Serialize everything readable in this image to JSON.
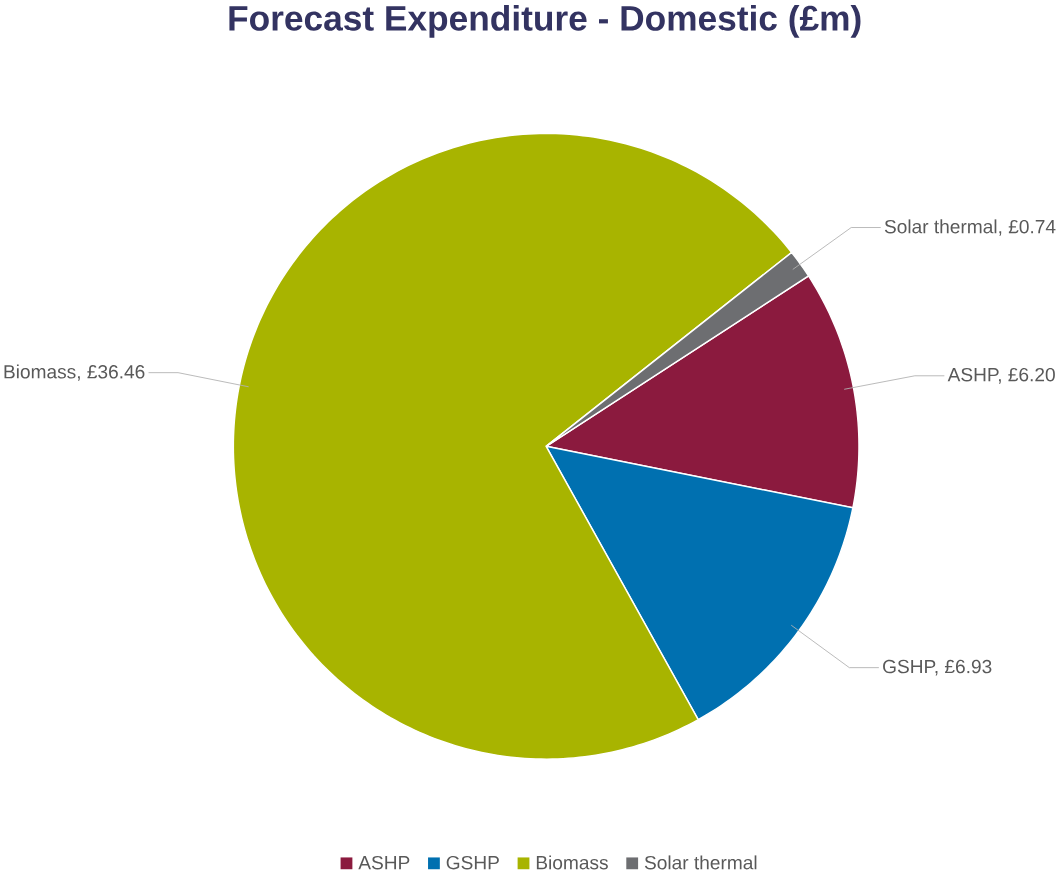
{
  "chart_data": {
    "type": "pie",
    "title": "Forecast Expenditure - Domestic (£m)",
    "categories": [
      "ASHP",
      "GSHP",
      "Biomass",
      "Solar thermal"
    ],
    "values": [
      6.2,
      6.93,
      36.46,
      0.74
    ],
    "colors": [
      "#8b1a3e",
      "#0070b0",
      "#a8b400",
      "#6d6e71"
    ],
    "value_labels": [
      "ASHP, £6.20",
      "GSHP, £6.93",
      "Biomass, £36.46",
      "Solar thermal, £0.74"
    ],
    "legend": "bottom"
  }
}
